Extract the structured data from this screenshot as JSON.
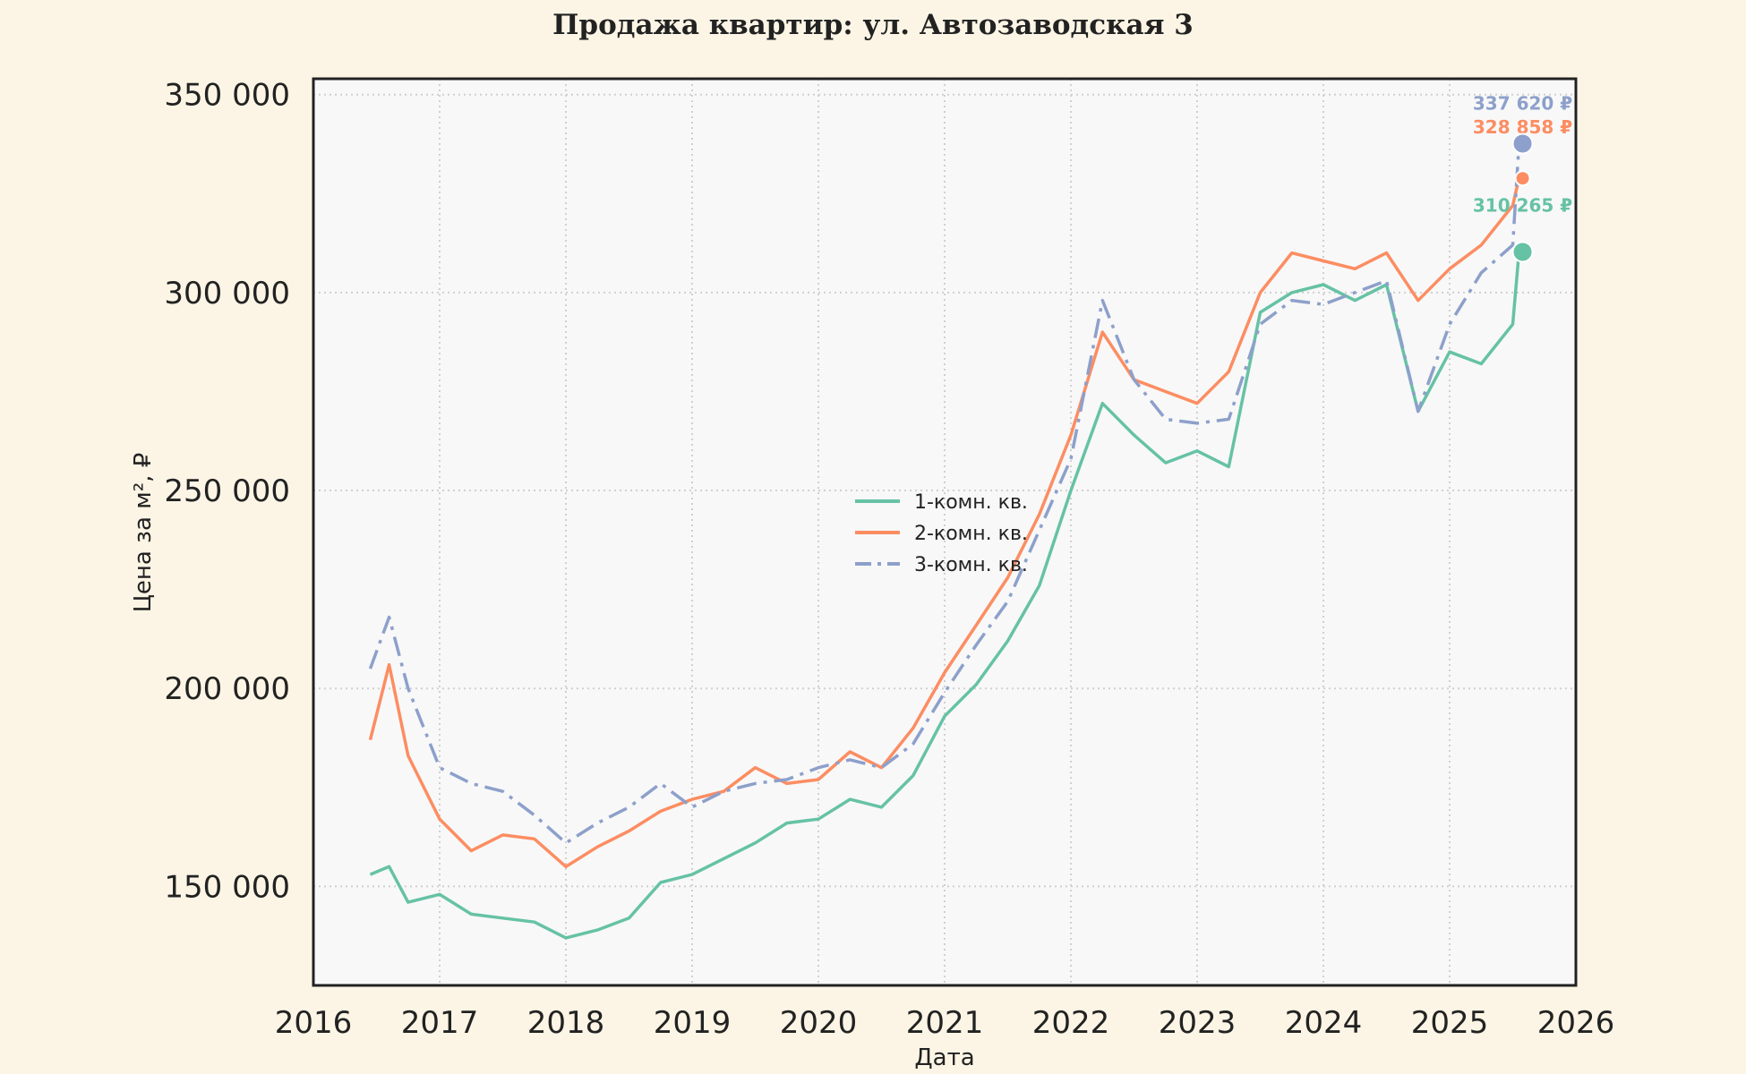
{
  "chart_data": {
    "type": "line",
    "title": "Продажа квартир: ул. Автозаводская 3",
    "xlabel": "Дата",
    "ylabel": "Цена за м², ₽",
    "xlim": [
      2016,
      2026
    ],
    "ylim": [
      125000,
      354000
    ],
    "x_ticks": [
      "2016",
      "2017",
      "2018",
      "2019",
      "2020",
      "2021",
      "2022",
      "2023",
      "2024",
      "2025",
      "2026"
    ],
    "y_ticks": [
      "150 000",
      "200 000",
      "250 000",
      "300 000",
      "350 000"
    ],
    "grid": true,
    "legend_position": "center",
    "series": [
      {
        "name": "1-комн. кв.",
        "color": "#66c2a5",
        "line_style": "solid",
        "end_value": 310265,
        "end_label": "310 265 ₽",
        "x": [
          2016.45,
          2016.6,
          2016.75,
          2017.0,
          2017.25,
          2017.5,
          2017.75,
          2018.0,
          2018.25,
          2018.5,
          2018.75,
          2019.0,
          2019.25,
          2019.5,
          2019.75,
          2020.0,
          2020.25,
          2020.5,
          2020.75,
          2021.0,
          2021.25,
          2021.5,
          2021.75,
          2022.0,
          2022.25,
          2022.5,
          2022.75,
          2023.0,
          2023.25,
          2023.5,
          2023.75,
          2024.0,
          2024.25,
          2024.5,
          2024.75,
          2025.0,
          2025.25,
          2025.5,
          2025.55
        ],
        "y": [
          153000,
          155000,
          146000,
          148000,
          143000,
          142000,
          141000,
          137000,
          139000,
          142000,
          151000,
          153000,
          157000,
          161000,
          166000,
          167000,
          172000,
          170000,
          178000,
          193000,
          201000,
          212000,
          226000,
          250000,
          272000,
          264000,
          257000,
          260000,
          256000,
          295000,
          300000,
          302000,
          298000,
          302000,
          270000,
          285000,
          282000,
          292000,
          310265
        ]
      },
      {
        "name": "2-комн. кв.",
        "color": "#fc8d62",
        "line_style": "solid",
        "end_value": 328858,
        "end_label": "328 858 ₽",
        "x": [
          2016.45,
          2016.6,
          2016.75,
          2017.0,
          2017.25,
          2017.5,
          2017.75,
          2018.0,
          2018.25,
          2018.5,
          2018.75,
          2019.0,
          2019.25,
          2019.5,
          2019.75,
          2020.0,
          2020.25,
          2020.5,
          2020.75,
          2021.0,
          2021.25,
          2021.5,
          2021.75,
          2022.0,
          2022.25,
          2022.5,
          2022.75,
          2023.0,
          2023.25,
          2023.5,
          2023.75,
          2024.0,
          2024.25,
          2024.5,
          2024.75,
          2025.0,
          2025.25,
          2025.5,
          2025.55
        ],
        "y": [
          187000,
          206000,
          183000,
          167000,
          159000,
          163000,
          162000,
          155000,
          160000,
          164000,
          169000,
          172000,
          174000,
          180000,
          176000,
          177000,
          184000,
          180000,
          190000,
          204000,
          216000,
          228000,
          244000,
          264000,
          290000,
          278000,
          275000,
          272000,
          280000,
          300000,
          310000,
          308000,
          306000,
          310000,
          298000,
          306000,
          312000,
          322000,
          328858
        ]
      },
      {
        "name": "3-комн. кв.",
        "color": "#8da0cb",
        "line_style": "dashdot",
        "end_value": 337620,
        "end_label": "337 620 ₽",
        "x": [
          2016.45,
          2016.6,
          2016.75,
          2017.0,
          2017.25,
          2017.5,
          2017.75,
          2018.0,
          2018.25,
          2018.5,
          2018.75,
          2019.0,
          2019.25,
          2019.5,
          2019.75,
          2020.0,
          2020.25,
          2020.5,
          2020.75,
          2021.0,
          2021.25,
          2021.5,
          2021.75,
          2022.0,
          2022.25,
          2022.5,
          2022.75,
          2023.0,
          2023.25,
          2023.5,
          2023.75,
          2024.0,
          2024.25,
          2024.5,
          2024.75,
          2025.0,
          2025.25,
          2025.5,
          2025.55
        ],
        "y": [
          205000,
          218000,
          200000,
          180000,
          176000,
          174000,
          168000,
          161000,
          166000,
          170000,
          176000,
          170000,
          174000,
          176000,
          177000,
          180000,
          182000,
          180000,
          186000,
          199000,
          211000,
          222000,
          240000,
          258000,
          298000,
          278000,
          268000,
          267000,
          268000,
          292000,
          298000,
          297000,
          300000,
          303000,
          270000,
          292000,
          305000,
          312000,
          337620
        ]
      }
    ]
  }
}
